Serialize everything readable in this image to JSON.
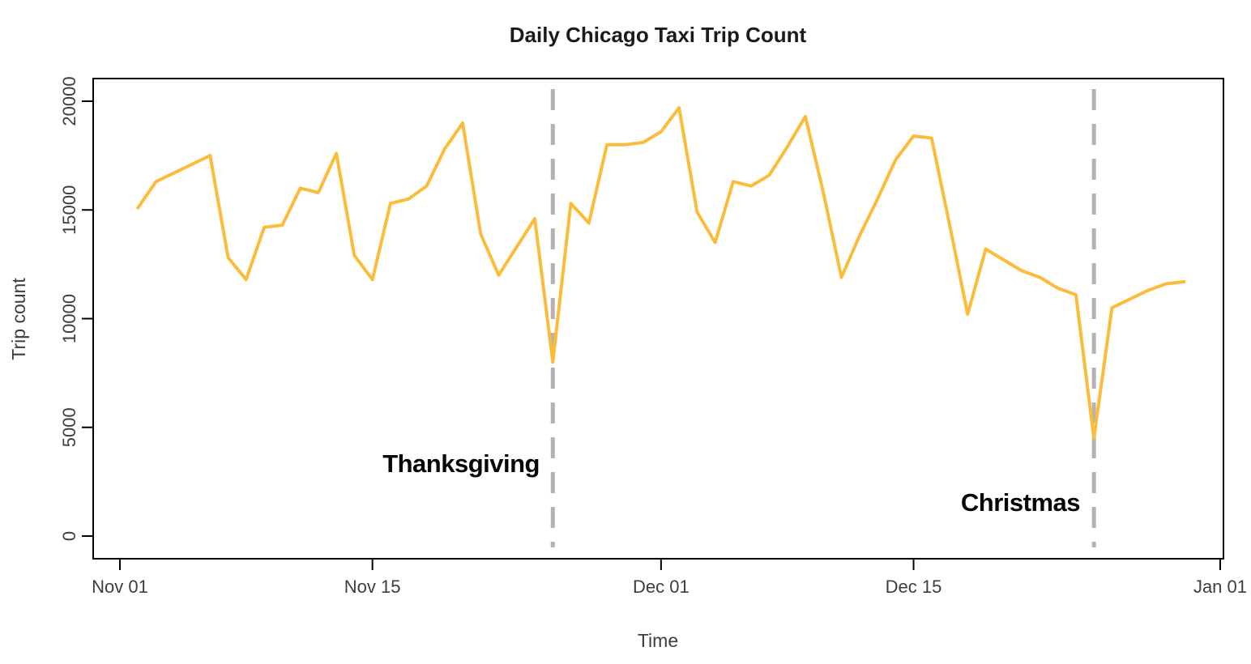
{
  "page": {
    "background": "#ffffff"
  },
  "chart_data": {
    "type": "line",
    "title": "Daily Chicago Taxi Trip Count",
    "xlabel": "Time",
    "ylabel": "Trip count",
    "x_tick_labels": [
      "Nov 01",
      "Nov 15",
      "Dec 01",
      "Dec 15",
      "Jan 01"
    ],
    "y_ticks": [
      0,
      5000,
      10000,
      15000,
      20000
    ],
    "ylim": [
      0,
      20000
    ],
    "grid": false,
    "legend": "none",
    "line_color": "#FBBC3C",
    "event_line_color": "#B3B3B3",
    "axis_color": "#000000",
    "dates": [
      "Nov 02",
      "Nov 03",
      "Nov 04",
      "Nov 05",
      "Nov 06",
      "Nov 07",
      "Nov 08",
      "Nov 09",
      "Nov 10",
      "Nov 11",
      "Nov 12",
      "Nov 13",
      "Nov 14",
      "Nov 15",
      "Nov 16",
      "Nov 17",
      "Nov 18",
      "Nov 19",
      "Nov 20",
      "Nov 21",
      "Nov 22",
      "Nov 23",
      "Nov 24",
      "Nov 25",
      "Nov 26",
      "Nov 27",
      "Nov 28",
      "Nov 29",
      "Nov 30",
      "Dec 01",
      "Dec 02",
      "Dec 03",
      "Dec 04",
      "Dec 05",
      "Dec 06",
      "Dec 07",
      "Dec 08",
      "Dec 09",
      "Dec 10",
      "Dec 11",
      "Dec 12",
      "Dec 13",
      "Dec 14",
      "Dec 15",
      "Dec 16",
      "Dec 17",
      "Dec 18",
      "Dec 19",
      "Dec 20",
      "Dec 21",
      "Dec 22",
      "Dec 23",
      "Dec 24",
      "Dec 25",
      "Dec 26",
      "Dec 27",
      "Dec 28",
      "Dec 29",
      "Dec 30"
    ],
    "values": [
      15100,
      16300,
      16700,
      17100,
      17500,
      12800,
      11800,
      14200,
      14300,
      16000,
      15800,
      17600,
      12900,
      11800,
      15300,
      15500,
      16100,
      17800,
      19000,
      13900,
      12000,
      13300,
      14600,
      8000,
      15300,
      14400,
      18000,
      18000,
      18100,
      18600,
      19700,
      14900,
      13500,
      16300,
      16100,
      16600,
      17900,
      19300,
      15800,
      11900,
      13800,
      15500,
      17300,
      18400,
      18300,
      14300,
      10200,
      13200,
      12700,
      12200,
      11900,
      11400,
      11100,
      4500,
      10500,
      10900,
      11300,
      11600,
      11700
    ],
    "annotations": [
      {
        "label": "Thanksgiving",
        "date": "Nov 25"
      },
      {
        "label": "Christmas",
        "date": "Dec 25"
      }
    ]
  }
}
